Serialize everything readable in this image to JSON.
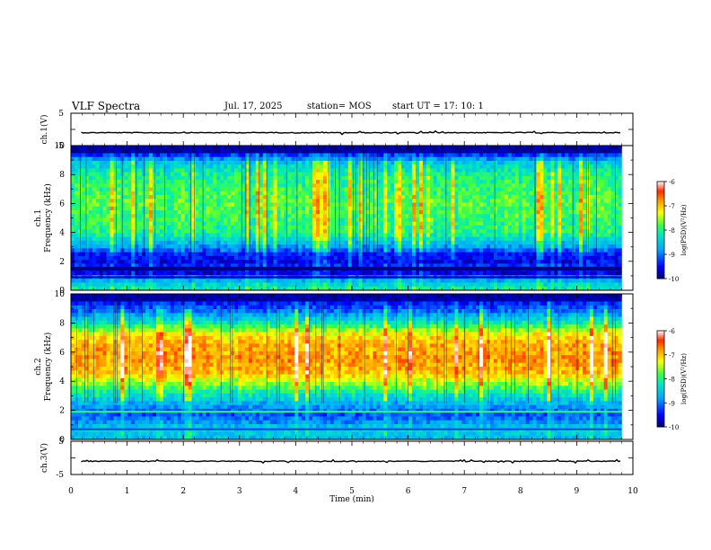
{
  "header": {
    "title": "VLF Spectra",
    "date": "Jul. 17, 2025",
    "station": "station= MOS",
    "start_ut": "start UT =  17: 10: 1"
  },
  "chart_data": [
    {
      "type": "line",
      "panel": "ch1-waveform",
      "ylabel": "ch.1(V)",
      "yticks": [
        "5",
        "-5"
      ],
      "ylim": [
        -5,
        5
      ],
      "xlim": [
        0,
        10
      ],
      "description_value": "flat trace near -1 V"
    },
    {
      "type": "heatmap",
      "panel": "ch1-spectrogram",
      "ylabel_line1": "ch.1",
      "ylabel_line2": "Frequency (kHz)",
      "yticks": [
        "0",
        "2",
        "4",
        "6",
        "8",
        "10"
      ],
      "ylim": [
        0,
        10
      ],
      "xlim": [
        0,
        10
      ],
      "data_end_min": 9.8,
      "colorbar": {
        "label": "log(PSD)(V²/Hz)",
        "ticks": [
          "-6",
          "-7",
          "-8",
          "-9",
          "-10"
        ],
        "range": [
          -10,
          -6
        ]
      },
      "frequency_profile": [
        {
          "f": 0.2,
          "v": -8.2
        },
        {
          "f": 0.6,
          "v": -8.6
        },
        {
          "f": 1.0,
          "v": -9.2
        },
        {
          "f": 1.3,
          "v": -9.9
        },
        {
          "f": 1.6,
          "v": -9.3
        },
        {
          "f": 2.0,
          "v": -9.6
        },
        {
          "f": 2.5,
          "v": -9.4
        },
        {
          "f": 3.0,
          "v": -8.8
        },
        {
          "f": 4.0,
          "v": -8.0
        },
        {
          "f": 5.0,
          "v": -7.9
        },
        {
          "f": 6.0,
          "v": -7.8
        },
        {
          "f": 7.0,
          "v": -7.9
        },
        {
          "f": 8.0,
          "v": -8.1
        },
        {
          "f": 8.8,
          "v": -8.5
        },
        {
          "f": 9.3,
          "v": -9.2
        },
        {
          "f": 9.7,
          "v": -10.0
        }
      ]
    },
    {
      "type": "heatmap",
      "panel": "ch2-spectrogram",
      "ylabel_line1": "ch.2",
      "ylabel_line2": "Frequency (kHz)",
      "yticks": [
        "0",
        "2",
        "4",
        "6",
        "8",
        "10"
      ],
      "ylim": [
        0,
        10
      ],
      "xlim": [
        0,
        10
      ],
      "data_end_min": 9.8,
      "colorbar": {
        "label": "log(PSD)(V²/Hz)",
        "ticks": [
          "-6",
          "-7",
          "-8",
          "-9",
          "-10"
        ],
        "range": [
          -10,
          -6
        ]
      },
      "frequency_profile": [
        {
          "f": 0.2,
          "v": -8.6
        },
        {
          "f": 0.7,
          "v": -8.4
        },
        {
          "f": 1.2,
          "v": -8.9
        },
        {
          "f": 1.8,
          "v": -9.2
        },
        {
          "f": 2.3,
          "v": -8.8
        },
        {
          "f": 3.0,
          "v": -8.3
        },
        {
          "f": 3.8,
          "v": -7.6
        },
        {
          "f": 4.5,
          "v": -7.0
        },
        {
          "f": 5.5,
          "v": -6.8
        },
        {
          "f": 6.5,
          "v": -6.9
        },
        {
          "f": 7.2,
          "v": -7.2
        },
        {
          "f": 8.0,
          "v": -8.2
        },
        {
          "f": 8.8,
          "v": -9.0
        },
        {
          "f": 9.5,
          "v": -9.5
        }
      ]
    },
    {
      "type": "line",
      "panel": "ch3-waveform",
      "ylabel": "ch.3(V)",
      "yticks": [
        "5",
        "-5"
      ],
      "ylim": [
        -5,
        5
      ],
      "xlim": [
        0,
        10
      ],
      "description_value": "flat trace near -1 V"
    }
  ],
  "xaxis": {
    "label": "Time (min)",
    "ticks": [
      "0",
      "1",
      "2",
      "3",
      "4",
      "5",
      "6",
      "7",
      "8",
      "9",
      "10"
    ]
  }
}
